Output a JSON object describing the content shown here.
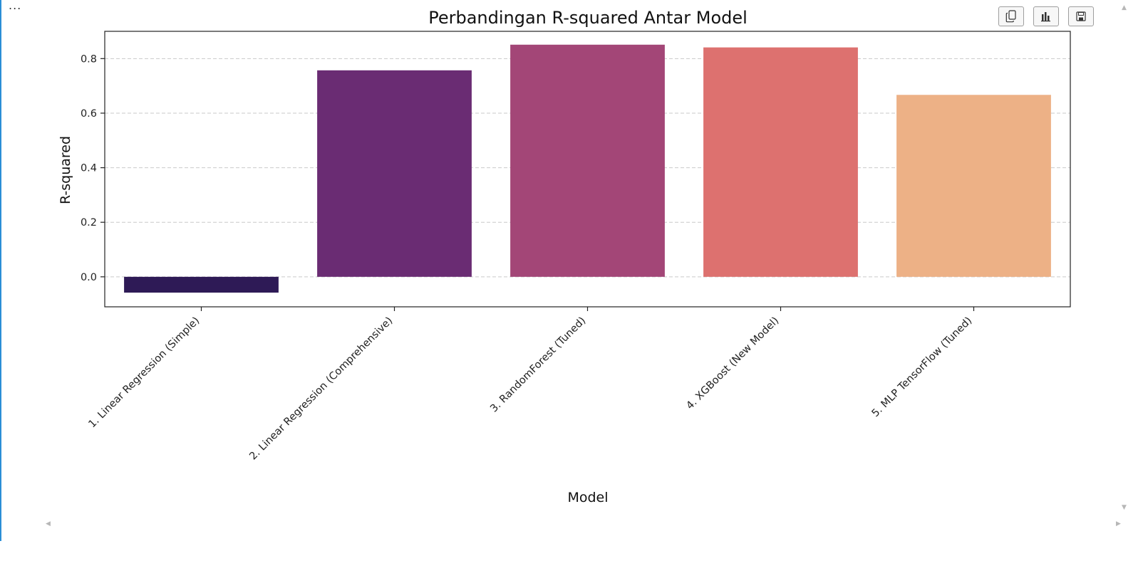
{
  "output_area": {
    "overflow_label": "...",
    "toolbar": [
      {
        "name": "copy-icon",
        "title": "Copy"
      },
      {
        "name": "chart-icon",
        "title": "Chart"
      },
      {
        "name": "save-icon",
        "title": "Save"
      }
    ]
  },
  "chart_data": {
    "type": "bar",
    "title": "Perbandingan R-squared Antar Model",
    "xlabel": "Model",
    "ylabel": "R-squared",
    "categories": [
      "1. Linear Regression (Simple)",
      "2. Linear Regression (Comprehensive)",
      "3. RandomForest (Tuned)",
      "4. XGBoost (New Model)",
      "5. MLP TensorFlow (Tuned)"
    ],
    "values": [
      -0.058,
      0.757,
      0.851,
      0.841,
      0.667
    ],
    "colors": [
      "#2e1a56",
      "#6a2c73",
      "#a34677",
      "#dd716f",
      "#edb186"
    ],
    "ylim": [
      -0.11,
      0.9
    ],
    "yticks": [
      0.0,
      0.2,
      0.4,
      0.6,
      0.8
    ],
    "ytick_labels": [
      "0.0",
      "0.2",
      "0.4",
      "0.6",
      "0.8"
    ],
    "grid": "y-dashed",
    "legend": "none"
  }
}
